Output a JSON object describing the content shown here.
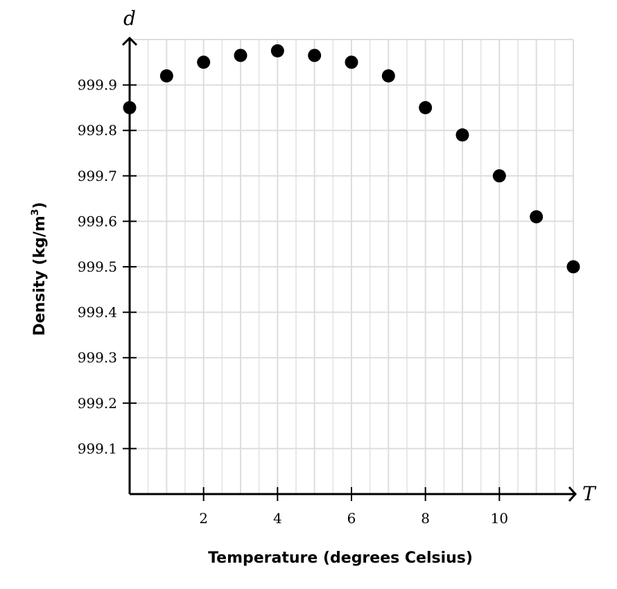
{
  "chart_data": {
    "type": "scatter",
    "x_variable": "T",
    "y_variable": "d",
    "xlabel": "Temperature (degrees Celsius)",
    "ylabel": "Density (kg/m",
    "ylabel_superscript": "3",
    "ylabel_close": ")",
    "xlim": [
      0,
      12
    ],
    "ylim": [
      999.0,
      1000.0
    ],
    "x_ticks": [
      2,
      4,
      6,
      8,
      10
    ],
    "x_tick_labels": [
      "2",
      "4",
      "6",
      "8",
      "10"
    ],
    "y_ticks": [
      999.1,
      999.2,
      999.3,
      999.4,
      999.5,
      999.6,
      999.7,
      999.8,
      999.9
    ],
    "y_tick_labels": [
      "999.1",
      "999.2",
      "999.3",
      "999.4",
      "999.5",
      "999.6",
      "999.7",
      "999.8",
      "999.9"
    ],
    "grid": true,
    "marker_color": "#000000",
    "grid_color": "#dddddd",
    "points": [
      {
        "x": 0,
        "y": 999.85
      },
      {
        "x": 1,
        "y": 999.92
      },
      {
        "x": 2,
        "y": 999.95
      },
      {
        "x": 3,
        "y": 999.965
      },
      {
        "x": 4,
        "y": 999.975
      },
      {
        "x": 5,
        "y": 999.965
      },
      {
        "x": 6,
        "y": 999.95
      },
      {
        "x": 7,
        "y": 999.92
      },
      {
        "x": 8,
        "y": 999.85
      },
      {
        "x": 9,
        "y": 999.79
      },
      {
        "x": 10,
        "y": 999.7
      },
      {
        "x": 11,
        "y": 999.61
      },
      {
        "x": 12,
        "y": 999.5
      }
    ]
  }
}
